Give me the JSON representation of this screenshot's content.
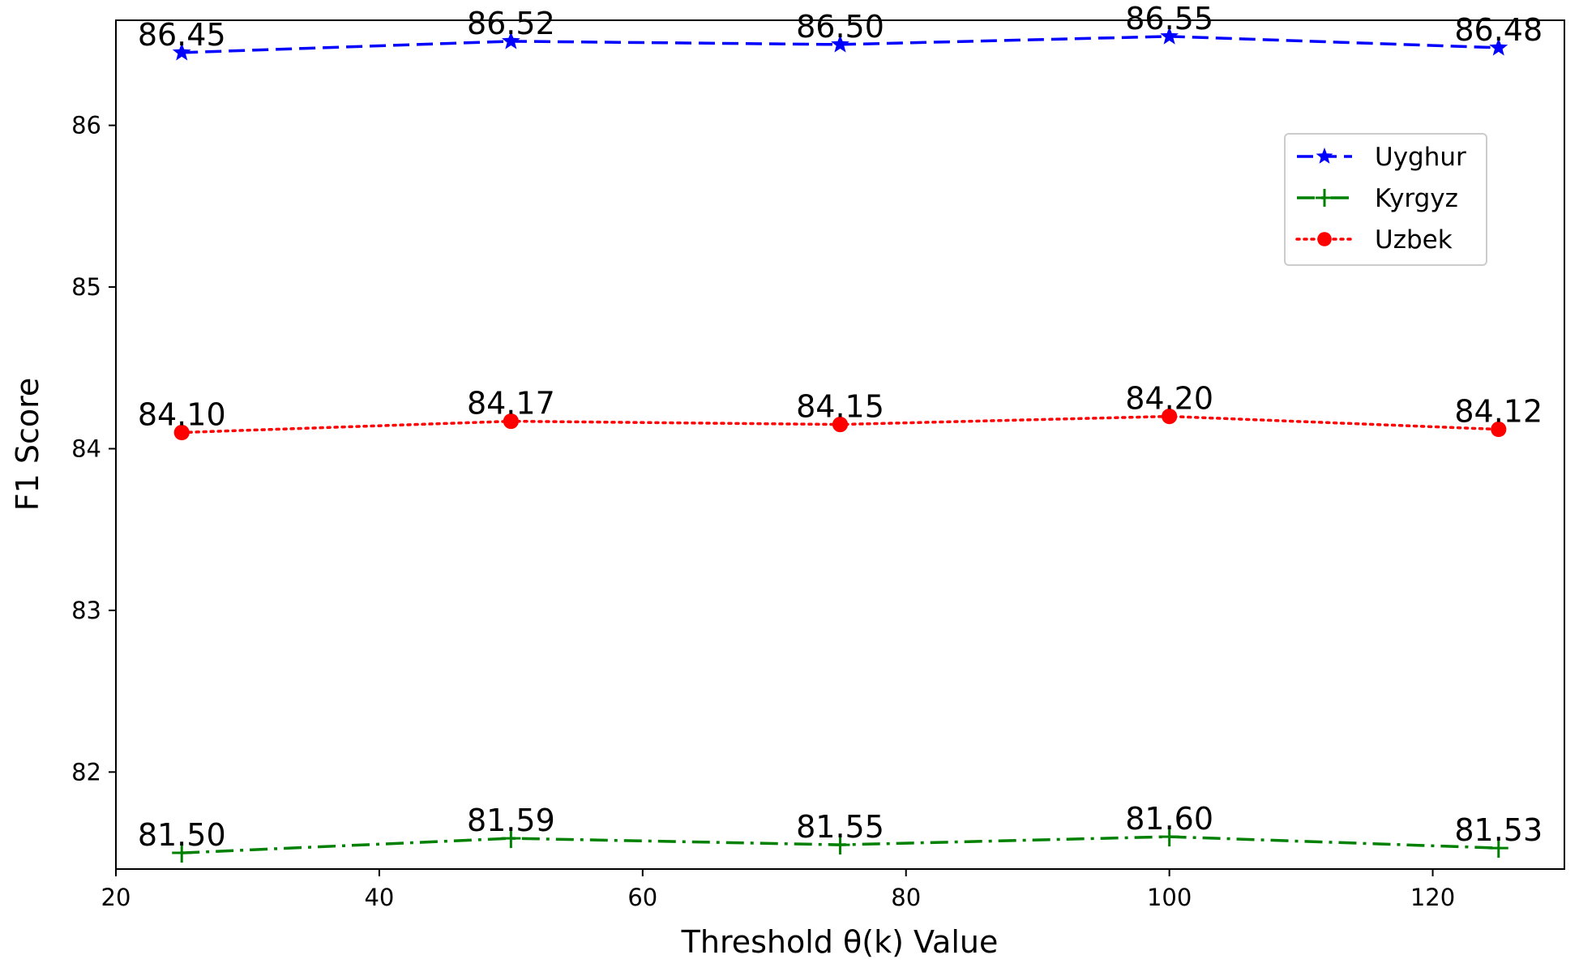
{
  "chart_data": {
    "type": "line",
    "title": "",
    "xlabel": "Threshold θ(k) Value",
    "ylabel": "F1 Score",
    "x": [
      25,
      50,
      75,
      100,
      125
    ],
    "xlim": [
      20,
      130
    ],
    "ylim": [
      81.4,
      86.65
    ],
    "xticks": [
      "20",
      "40",
      "60",
      "80",
      "100",
      "120"
    ],
    "yticks": [
      "82",
      "83",
      "84",
      "85",
      "86"
    ],
    "grid": false,
    "legend_position": "upper right",
    "series": [
      {
        "name": "Uyghur",
        "values": [
          86.45,
          86.52,
          86.5,
          86.55,
          86.48
        ],
        "labels": [
          "86.45",
          "86.52",
          "86.50",
          "86.55",
          "86.48"
        ],
        "color": "#0000ff",
        "linestyle": "dashed",
        "marker": "star"
      },
      {
        "name": "Kyrgyz",
        "values": [
          81.5,
          81.59,
          81.55,
          81.6,
          81.53
        ],
        "labels": [
          "81.50",
          "81.59",
          "81.55",
          "81.60",
          "81.53"
        ],
        "color": "#008000",
        "linestyle": "dashdot",
        "marker": "plus"
      },
      {
        "name": "Uzbek",
        "values": [
          84.1,
          84.17,
          84.15,
          84.2,
          84.12
        ],
        "labels": [
          "84.10",
          "84.17",
          "84.15",
          "84.20",
          "84.12"
        ],
        "color": "#ff0000",
        "linestyle": "dotted",
        "marker": "circle"
      }
    ]
  }
}
